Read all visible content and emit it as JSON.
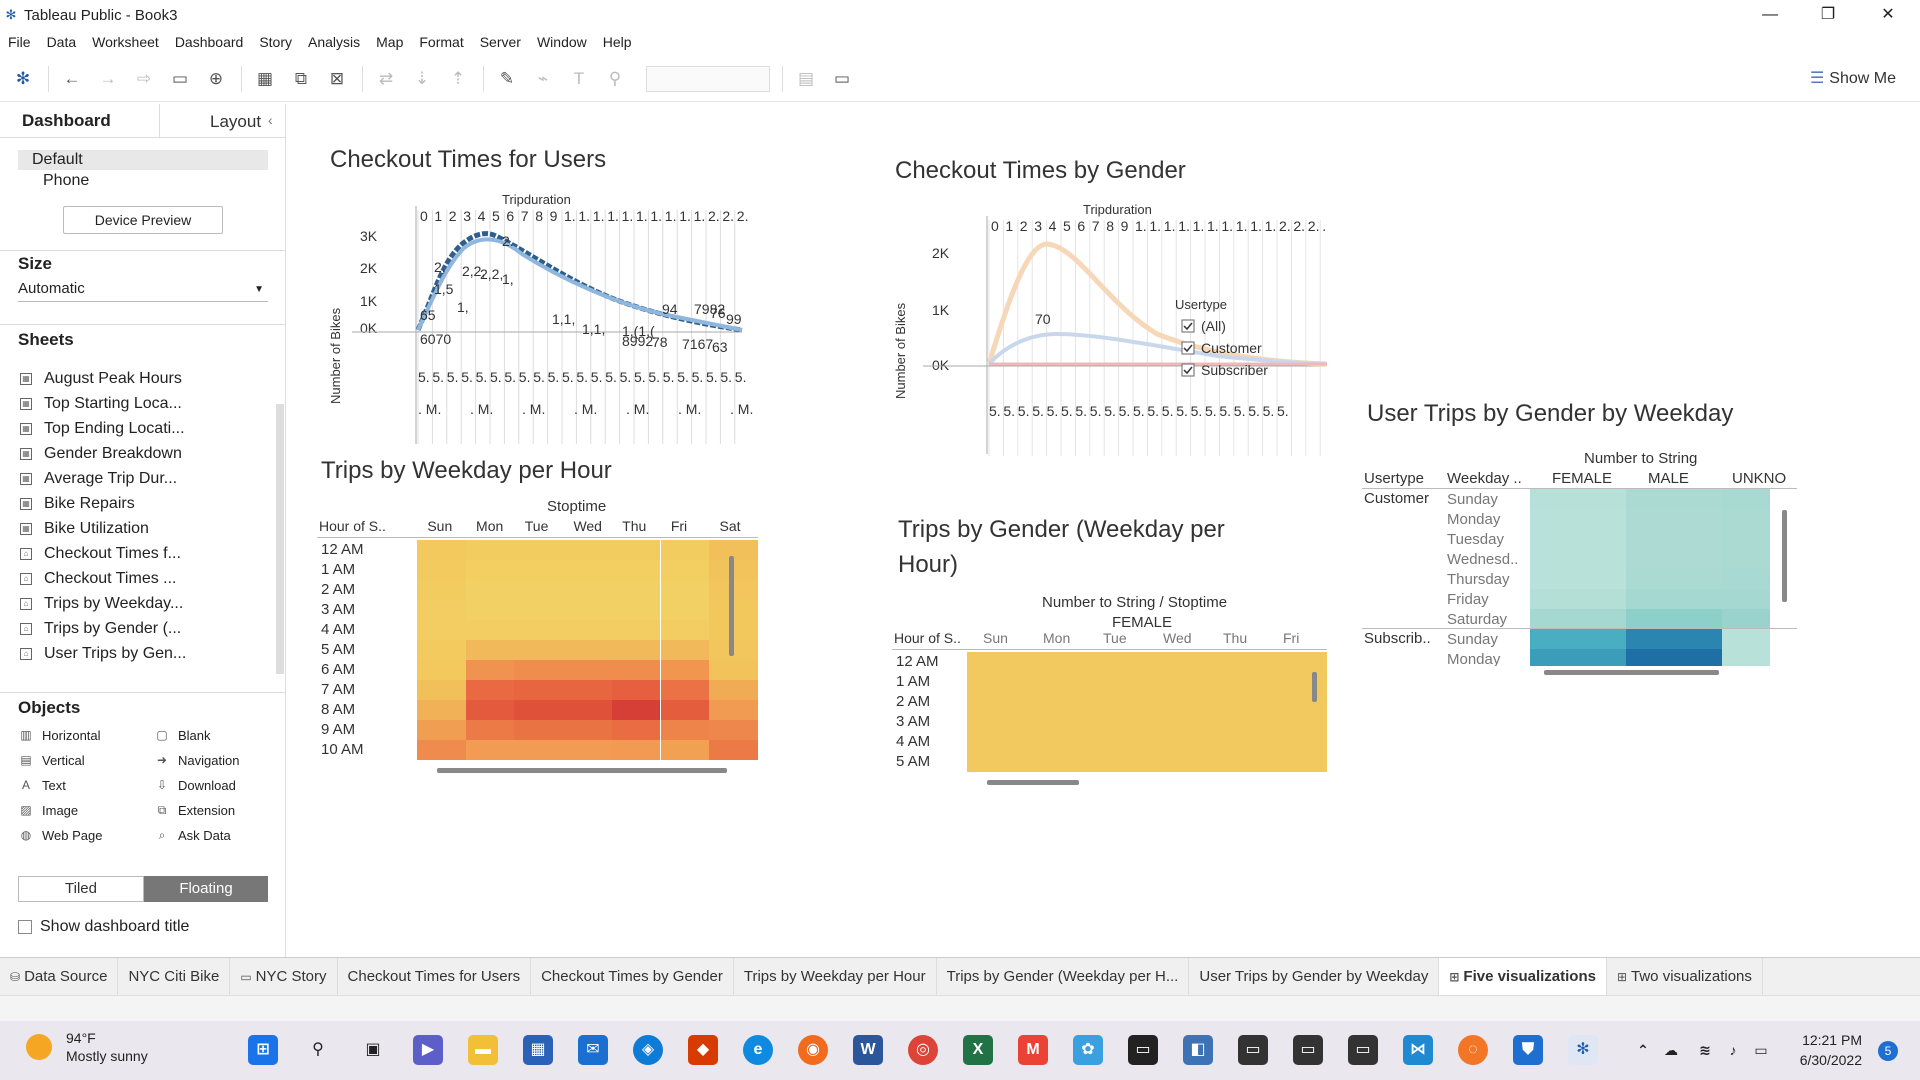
{
  "window": {
    "title": "Tableau Public - Book3"
  },
  "menu": [
    "File",
    "Data",
    "Worksheet",
    "Dashboard",
    "Story",
    "Analysis",
    "Map",
    "Format",
    "Server",
    "Window",
    "Help"
  ],
  "toolbar": {
    "show_me_label": "Show Me"
  },
  "left_panel": {
    "tab_dashboard": "Dashboard",
    "tab_layout": "Layout",
    "device_default": "Default",
    "device_phone": "Phone",
    "device_preview_button": "Device Preview",
    "size_heading": "Size",
    "size_value": "Automatic",
    "sheets_heading": "Sheets",
    "sheets": [
      "August Peak Hours",
      "Top Starting Loca...",
      "Top Ending Locati...",
      "Gender Breakdown",
      "Average Trip Dur...",
      "Bike Repairs",
      "Bike Utilization",
      "Checkout Times f...",
      "Checkout Times ...",
      "Trips by Weekday...",
      "Trips by Gender (...",
      "User Trips by Gen..."
    ],
    "objects_heading": "Objects",
    "objects": [
      {
        "label": "Horizontal",
        "icon": "horizontal-icon"
      },
      {
        "label": "Blank",
        "icon": "blank-icon"
      },
      {
        "label": "Vertical",
        "icon": "vertical-icon"
      },
      {
        "label": "Navigation",
        "icon": "navigation-icon"
      },
      {
        "label": "Text",
        "icon": "text-icon"
      },
      {
        "label": "Download",
        "icon": "download-icon"
      },
      {
        "label": "Image",
        "icon": "image-icon"
      },
      {
        "label": "Extension",
        "icon": "extension-icon"
      },
      {
        "label": "Web Page",
        "icon": "web-page-icon"
      },
      {
        "label": "Ask Data",
        "icon": "ask-data-icon"
      }
    ],
    "tiled_label": "Tiled",
    "floating_label": "Floating",
    "show_title_label": "Show dashboard title"
  },
  "views": {
    "checkout_users": {
      "title": "Checkout Times for Users",
      "header": "Tripduration",
      "y_label": "Number of Bikes",
      "y_ticks": [
        "3K",
        "2K",
        "1K",
        "0K"
      ],
      "col_labels": [
        "0",
        "1",
        "2",
        "3",
        "4",
        "5",
        "6",
        "7",
        "8",
        "9",
        "1.",
        "1.",
        "1.",
        "1.",
        "1.",
        "1.",
        "1.",
        "1.",
        "1.",
        "1.",
        "2.",
        "2.",
        "2."
      ],
      "bottom_row": [
        "5.",
        "5.",
        "5.",
        "5.",
        "5.",
        "5.",
        "5.",
        "5.",
        "5.",
        "5.",
        "5.",
        "5.",
        "5.",
        "5.",
        "5.",
        "5.",
        "5.",
        "5.",
        "5.",
        "5.",
        "5.",
        "5.",
        "5."
      ],
      "bottom_row2": [
        ". M.",
        ". M.",
        ". M.",
        ". M.",
        ". M.",
        ". M.",
        ". M."
      ],
      "labels": [
        "2,",
        "2,2,",
        "2,2,",
        "1,",
        "1,5",
        "1,",
        "65",
        "6070",
        "2.",
        "1,1,",
        "1,1,",
        "1,(1,(",
        "94",
        "7982",
        "76",
        "99",
        "8992",
        "78",
        "7167",
        "63"
      ]
    },
    "checkout_gender": {
      "title": "Checkout Times by Gender",
      "header": "Tripduration",
      "y_label": "Number of Bikes",
      "y_ticks": [
        "2K",
        "1K",
        "0K"
      ],
      "col_labels": [
        "0",
        "1",
        "2",
        "3",
        "4",
        "5",
        "6",
        "7",
        "8",
        "9",
        "1.",
        "1.",
        "1.",
        "1.",
        "1.",
        "1.",
        "1.",
        "1.",
        "1.",
        "1.",
        "2.",
        "2.",
        "2.",
        "."
      ],
      "bottom_row": [
        "5.",
        "5.",
        "5.",
        "5.",
        "5.",
        "5.",
        "5.",
        "5.",
        "5.",
        "5.",
        "5.",
        "5.",
        "5.",
        "5.",
        "5.",
        "5.",
        "5.",
        "5.",
        "5.",
        "5.",
        "5."
      ],
      "legend_title": "Usertype",
      "legend_items": [
        "(All)",
        "Customer",
        "Subscriber"
      ],
      "hover_label": "70"
    },
    "trips_weekday": {
      "title": "Trips by Weekday per Hour",
      "header": "Stoptime",
      "row_header": "Hour of S..",
      "days": [
        "Sun",
        "Mon",
        "Tue",
        "Wed",
        "Thu",
        "Fri",
        "Sat"
      ],
      "hours": [
        "12 AM",
        "1 AM",
        "2 AM",
        "3 AM",
        "4 AM",
        "5 AM",
        "6 AM",
        "7 AM",
        "8 AM",
        "9 AM",
        "10 AM"
      ],
      "colors": [
        [
          "#f3c85c",
          "#f3cc60",
          "#f3cc60",
          "#f3cc60",
          "#f3cc60",
          "#f3cc60",
          "#f2c05a"
        ],
        [
          "#f3ca5e",
          "#f3cf62",
          "#f3cf62",
          "#f3cf62",
          "#f3cf62",
          "#f3cf62",
          "#f2c35b"
        ],
        [
          "#f3cc60",
          "#f3d064",
          "#f3d064",
          "#f3d064",
          "#f3d064",
          "#f3d064",
          "#f2c65c"
        ],
        [
          "#f3cd61",
          "#f3d064",
          "#f3d064",
          "#f3d064",
          "#f3d064",
          "#f3d064",
          "#f2c85d"
        ],
        [
          "#f3cd61",
          "#f3cd62",
          "#f3cd62",
          "#f3cd62",
          "#f3cd62",
          "#f3cd62",
          "#f2c85d"
        ],
        [
          "#f3ca5e",
          "#f2b95a",
          "#f2b95a",
          "#f2b95a",
          "#f2b95a",
          "#f2b95a",
          "#f2c65c"
        ],
        [
          "#f3c85c",
          "#f09350",
          "#ef8d4e",
          "#ef8d4e",
          "#ef8c4e",
          "#f0964f",
          "#f2c25b"
        ],
        [
          "#f2c05a",
          "#e96a42",
          "#e76640",
          "#e76640",
          "#e65f3e",
          "#eb7244",
          "#f1ab55"
        ],
        [
          "#f1b257",
          "#e35a3c",
          "#df5139",
          "#df5139",
          "#d63f36",
          "#e45e3d",
          "#f09b51"
        ],
        [
          "#f09e51",
          "#ec7a46",
          "#ea7344",
          "#ea7344",
          "#e96c42",
          "#ee8449",
          "#ee874c"
        ],
        [
          "#ef8b4c",
          "#f29b52",
          "#f29b52",
          "#f29b52",
          "#f29a51",
          "#f2a052",
          "#ec7a46"
        ]
      ]
    },
    "trips_gender": {
      "title_line1": "Trips by Gender (Weekday per",
      "title_line2": "Hour)",
      "header": "Number to String / Stoptime",
      "subheader": "FEMALE",
      "row_header": "Hour of S..",
      "days": [
        "Sun",
        "Mon",
        "Tue",
        "Wed",
        "Thu",
        "Fri"
      ],
      "hours": [
        "12 AM",
        "1 AM",
        "2 AM",
        "3 AM",
        "4 AM",
        "5 AM"
      ]
    },
    "user_trips": {
      "title": "User Trips by Gender by Weekday",
      "header": "Number to String",
      "col_usertype": "Usertype",
      "col_weekday": "Weekday ..",
      "genders": [
        "FEMALE",
        "MALE",
        "UNKNO"
      ],
      "customer_label": "Customer",
      "subscriber_label": "Subscrib..",
      "customer_days": [
        "Sunday",
        "Monday",
        "Tuesday",
        "Wednesd..",
        "Thursday",
        "Friday",
        "Saturday"
      ],
      "subscriber_days": [
        "Sunday",
        "Monday"
      ],
      "colors": [
        [
          "#b6e0d8",
          "#abdad3",
          "#a9d9d3"
        ],
        [
          "#b8e1d9",
          "#addbd4",
          "#abdad3"
        ],
        [
          "#b8e1d9",
          "#addbd4",
          "#abdad3"
        ],
        [
          "#b8e1d9",
          "#addbd4",
          "#abdad3"
        ],
        [
          "#b8e1d9",
          "#abdad3",
          "#a9d9d3"
        ],
        [
          "#b4dfd7",
          "#a6d8d2",
          "#a6d8d2"
        ],
        [
          "#a6d8d2",
          "#8dcfc9",
          "#9ad3cd"
        ],
        [
          "#4aaec2",
          "#2a86b0",
          "#b8e1d9"
        ],
        [
          "#3c9dbb",
          "#1d6fa5",
          "#b8e1d9"
        ]
      ]
    }
  },
  "sheet_tabs": [
    {
      "label": "Data Source",
      "icon": "data-source-icon"
    },
    {
      "label": "NYC Citi Bike",
      "icon": ""
    },
    {
      "label": "NYC Story",
      "icon": "story-icon"
    },
    {
      "label": "Checkout Times for Users",
      "icon": ""
    },
    {
      "label": "Checkout Times by Gender",
      "icon": ""
    },
    {
      "label": "Trips by Weekday per Hour",
      "icon": ""
    },
    {
      "label": "Trips by Gender (Weekday per H...",
      "icon": ""
    },
    {
      "label": "User Trips by Gender by Weekday",
      "icon": ""
    },
    {
      "label": "Five visualizations",
      "icon": "dashboard-icon",
      "active": true
    },
    {
      "label": "Two visualizations",
      "icon": "dashboard-icon"
    }
  ],
  "taskbar": {
    "weather_temp": "94°F",
    "weather_desc": "Mostly sunny",
    "time": "12:21 PM",
    "date": "6/30/2022",
    "notifications": "5"
  }
}
